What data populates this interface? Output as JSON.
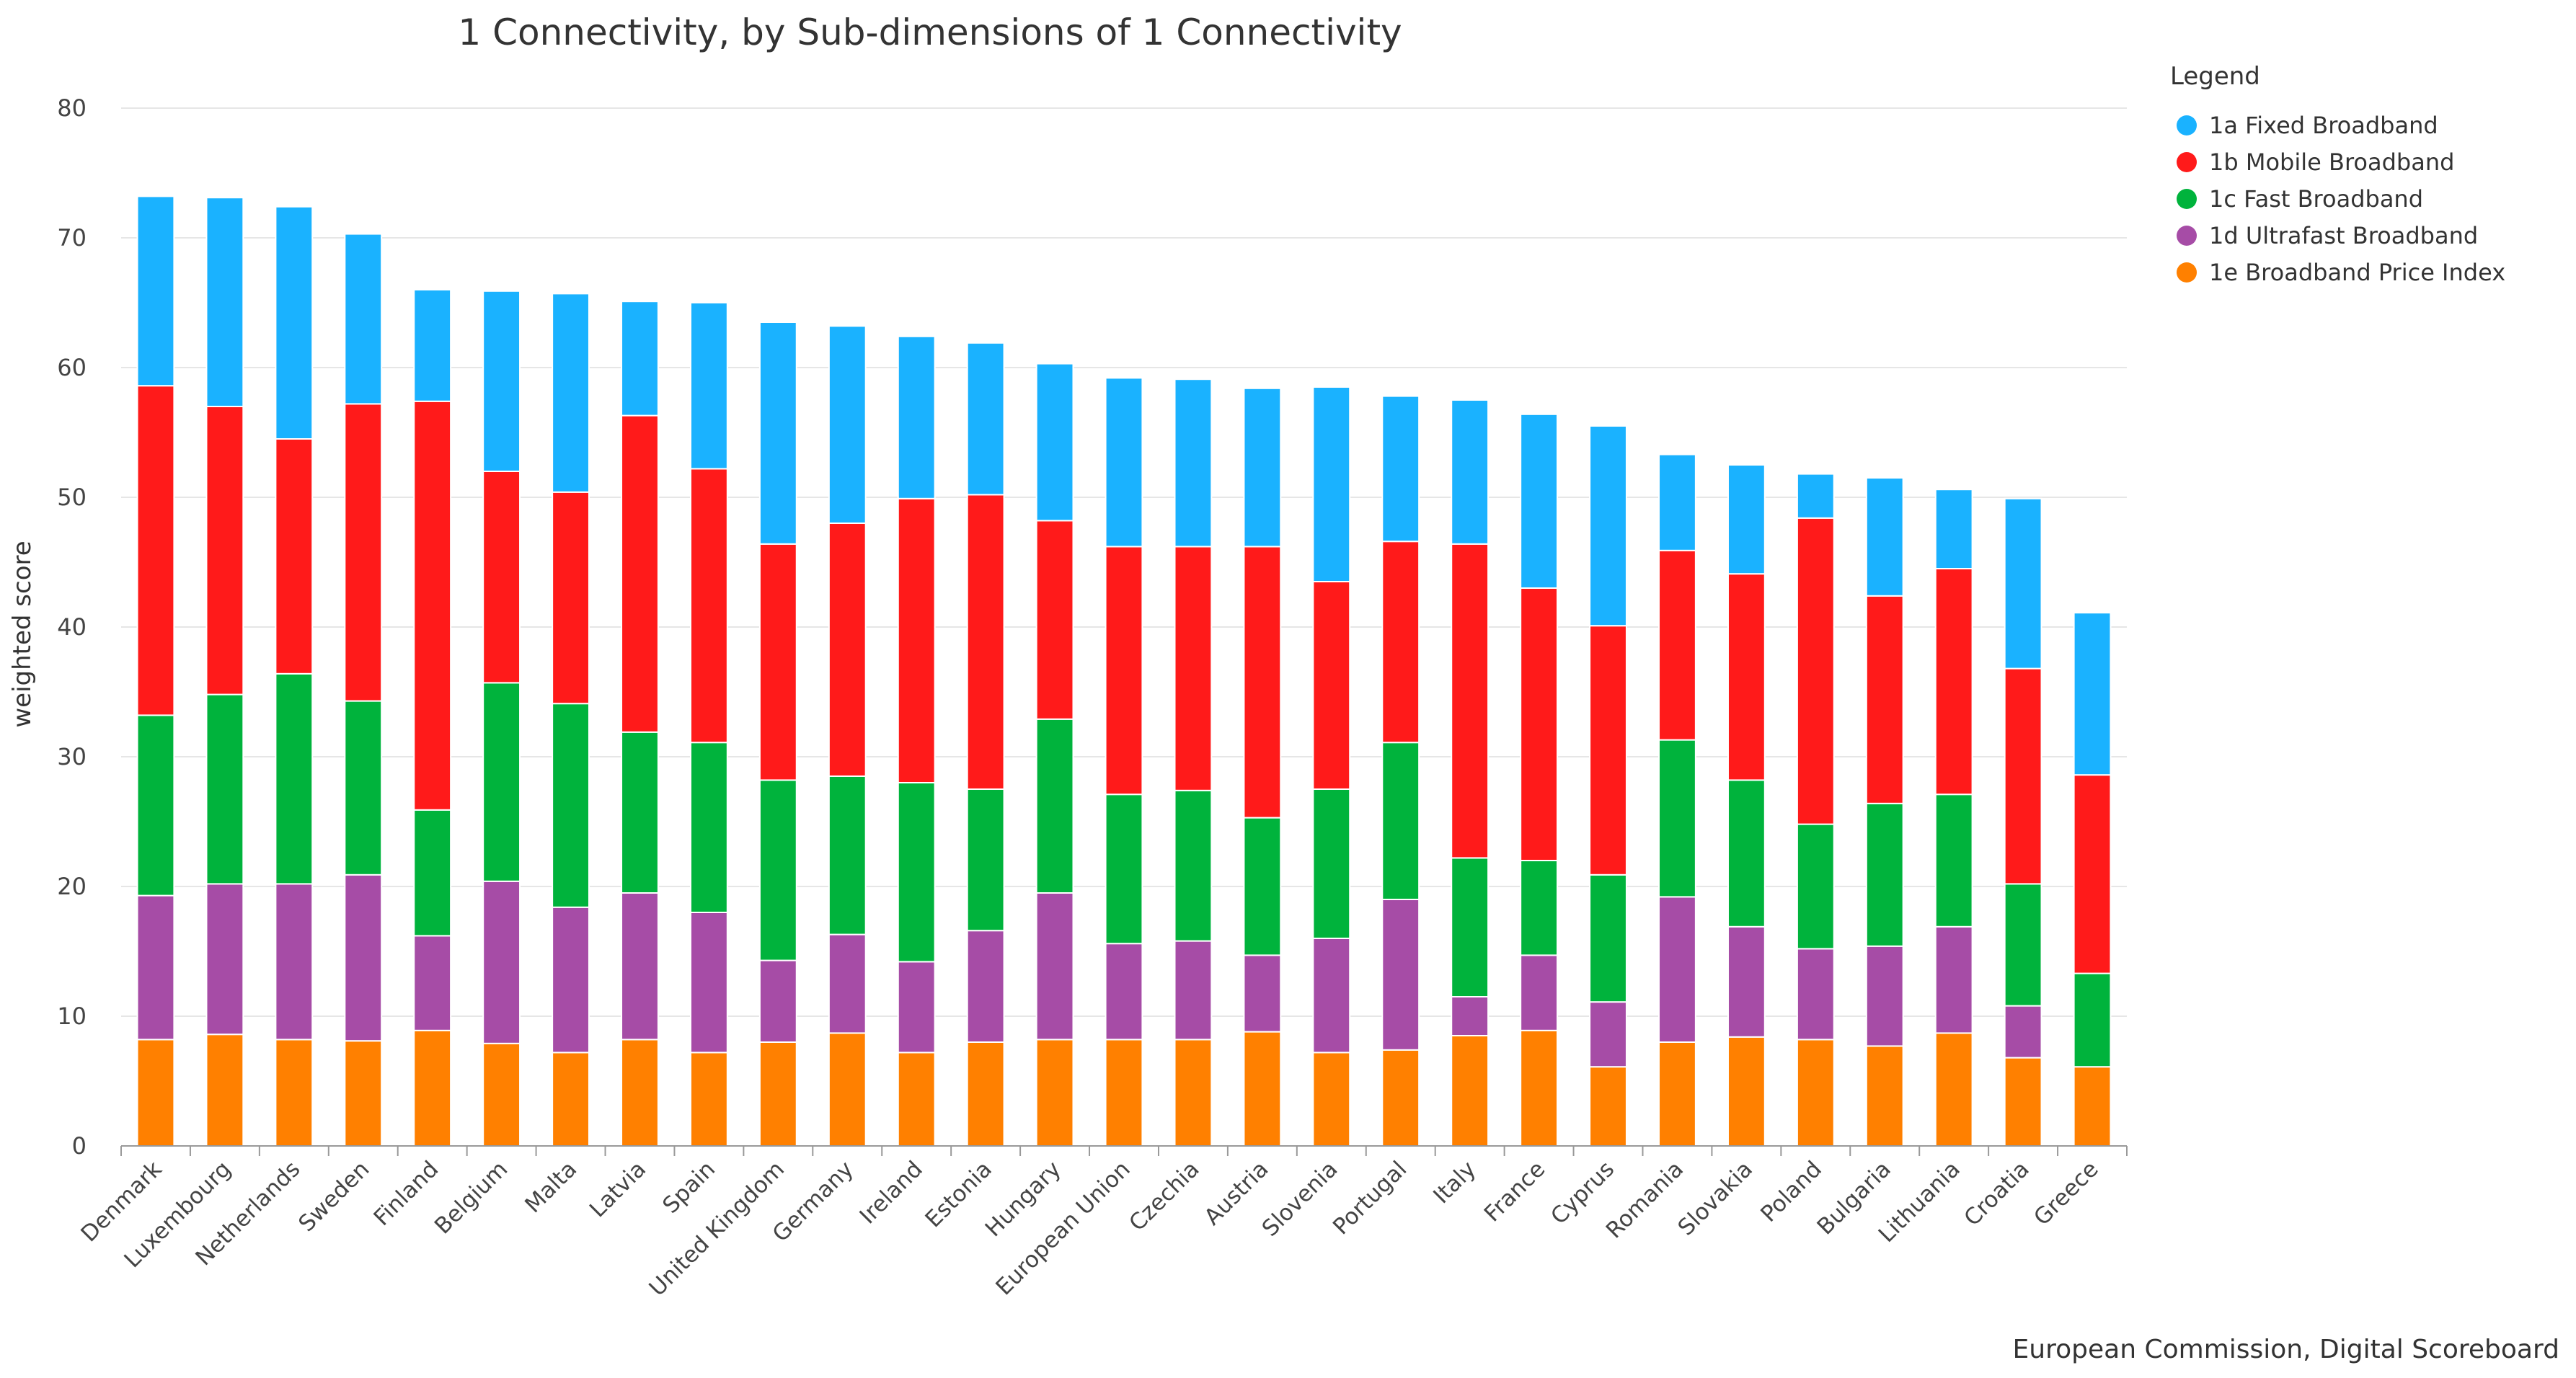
{
  "chart_data": {
    "type": "bar",
    "stacked": true,
    "title": "1 Connectivity, by Sub-dimensions of 1 Connectivity",
    "ylabel": "weighted score",
    "xlabel": "",
    "ylim": [
      0,
      80
    ],
    "yticks": [
      0,
      10,
      20,
      30,
      40,
      50,
      60,
      70,
      80
    ],
    "grid": true,
    "legend_title": "Legend",
    "legend_position": "top-right",
    "credit": "European Commission, Digital Scoreboard",
    "categories": [
      "Denmark",
      "Luxembourg",
      "Netherlands",
      "Sweden",
      "Finland",
      "Belgium",
      "Malta",
      "Latvia",
      "Spain",
      "United Kingdom",
      "Germany",
      "Ireland",
      "Estonia",
      "Hungary",
      "European Union",
      "Czechia",
      "Austria",
      "Slovenia",
      "Portugal",
      "Italy",
      "France",
      "Cyprus",
      "Romania",
      "Slovakia",
      "Poland",
      "Bulgaria",
      "Lithuania",
      "Croatia",
      "Greece"
    ],
    "series": [
      {
        "name": "1e Broadband Price Index",
        "color": "#ff8000",
        "values": [
          8.2,
          8.6,
          8.2,
          8.1,
          8.9,
          7.9,
          7.2,
          8.2,
          7.2,
          8.0,
          8.7,
          7.2,
          8.0,
          8.2,
          8.2,
          8.2,
          8.8,
          7.2,
          7.4,
          8.5,
          8.9,
          6.1,
          8.0,
          8.4,
          8.2,
          7.7,
          8.7,
          6.8,
          6.1
        ]
      },
      {
        "name": "1d Ultrafast Broadband",
        "color": "#a64ca6",
        "values": [
          11.1,
          11.6,
          12.0,
          12.8,
          7.3,
          12.5,
          11.2,
          11.3,
          10.8,
          6.3,
          7.6,
          7.0,
          8.6,
          11.3,
          7.4,
          7.6,
          5.9,
          8.8,
          11.6,
          3.0,
          5.8,
          5.0,
          11.2,
          8.5,
          7.0,
          7.7,
          8.2,
          4.0,
          0
        ]
      },
      {
        "name": "1c Fast Broadband",
        "color": "#00b33c",
        "values": [
          13.9,
          14.6,
          16.2,
          13.4,
          9.7,
          15.3,
          15.7,
          12.4,
          13.1,
          13.9,
          12.2,
          13.8,
          10.9,
          13.4,
          11.5,
          11.6,
          10.6,
          11.5,
          12.1,
          10.7,
          7.3,
          9.8,
          12.1,
          11.3,
          9.6,
          11.0,
          10.2,
          9.4,
          7.2
        ]
      },
      {
        "name": "1b Mobile Broadband",
        "color": "#ff1a1a",
        "values": [
          25.4,
          22.2,
          18.1,
          22.9,
          31.5,
          16.3,
          16.3,
          24.4,
          21.1,
          18.2,
          19.5,
          21.9,
          22.7,
          15.3,
          19.1,
          18.8,
          20.9,
          16.0,
          15.5,
          24.2,
          21.0,
          19.2,
          14.6,
          15.9,
          23.6,
          16.0,
          17.4,
          16.6,
          15.3
        ]
      },
      {
        "name": "1a Fixed Broadband",
        "color": "#1ab2ff",
        "values": [
          14.6,
          16.1,
          17.9,
          13.1,
          8.6,
          13.9,
          15.3,
          8.8,
          12.8,
          17.1,
          15.2,
          12.5,
          11.7,
          12.1,
          13.0,
          12.9,
          12.2,
          15.0,
          11.2,
          11.1,
          13.4,
          15.4,
          7.4,
          8.4,
          3.4,
          9.1,
          6.1,
          13.1,
          12.5
        ]
      }
    ]
  }
}
